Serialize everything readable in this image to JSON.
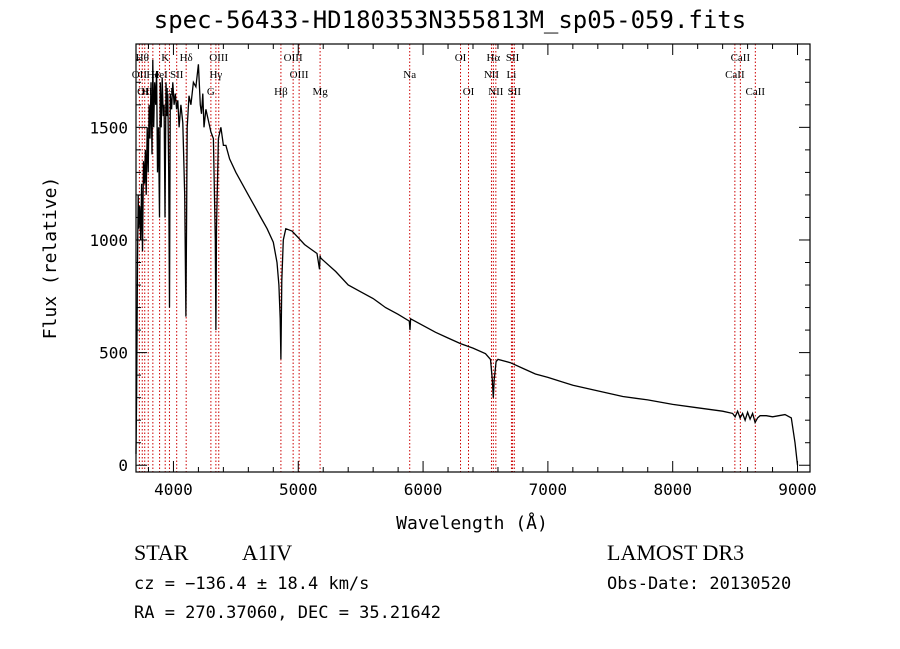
{
  "chart_data": {
    "type": "line",
    "title": "spec-56433-HD180353N355813M_sp05-059.fits",
    "xlabel": "Wavelength (Å)",
    "ylabel": "Flux (relative)",
    "xlim": [
      3700,
      9100
    ],
    "ylim": [
      -30,
      1870
    ],
    "x_ticks": [
      4000,
      5000,
      6000,
      7000,
      8000,
      9000
    ],
    "y_ticks": [
      0,
      500,
      1000,
      1500
    ],
    "x_minor_step": 200,
    "y_minor_step": 100,
    "line_color": "#000000",
    "marker_color": "#cc0000",
    "series": [
      {
        "name": "spectrum",
        "x": [
          3700,
          3705,
          3712,
          3718,
          3722,
          3730,
          3738,
          3745,
          3752,
          3760,
          3768,
          3775,
          3782,
          3790,
          3798,
          3805,
          3812,
          3820,
          3828,
          3835,
          3842,
          3850,
          3858,
          3865,
          3872,
          3880,
          3888,
          3895,
          3902,
          3910,
          3918,
          3925,
          3932,
          3940,
          3948,
          3955,
          3962,
          3968,
          3975,
          3985,
          3995,
          4005,
          4015,
          4025,
          4035,
          4045,
          4060,
          4075,
          4090,
          4100,
          4105,
          4110,
          4125,
          4140,
          4160,
          4180,
          4200,
          4215,
          4225,
          4235,
          4245,
          4260,
          4280,
          4300,
          4320,
          4335,
          4340,
          4345,
          4360,
          4380,
          4400,
          4420,
          4450,
          4500,
          4550,
          4600,
          4650,
          4700,
          4750,
          4800,
          4830,
          4845,
          4855,
          4861,
          4868,
          4880,
          4900,
          4950,
          5000,
          5050,
          5100,
          5150,
          5170,
          5175,
          5180,
          5200,
          5300,
          5400,
          5500,
          5600,
          5700,
          5800,
          5890,
          5895,
          5900,
          6000,
          6100,
          6200,
          6300,
          6400,
          6500,
          6540,
          6555,
          6563,
          6570,
          6585,
          6600,
          6700,
          6800,
          6900,
          7000,
          7200,
          7400,
          7600,
          7800,
          8000,
          8200,
          8400,
          8480,
          8500,
          8520,
          8540,
          8560,
          8580,
          8600,
          8620,
          8640,
          8660,
          8680,
          8700,
          8750,
          8800,
          8850,
          8900,
          8950,
          8980,
          9000
        ],
        "y": [
          50,
          300,
          900,
          1200,
          1050,
          1150,
          1000,
          1250,
          950,
          1350,
          1250,
          1400,
          1200,
          1500,
          1300,
          1600,
          1450,
          1700,
          1380,
          1800,
          1500,
          1700,
          1600,
          1750,
          1300,
          1500,
          1100,
          1700,
          1500,
          1720,
          1550,
          1600,
          1100,
          1700,
          1550,
          1650,
          1300,
          700,
          1650,
          1580,
          1700,
          1600,
          1650,
          1580,
          1620,
          1500,
          1600,
          1520,
          1200,
          660,
          1100,
          1500,
          1640,
          1600,
          1700,
          1680,
          1780,
          1600,
          1560,
          1650,
          1500,
          1580,
          1530,
          1480,
          1450,
          1000,
          600,
          1050,
          1450,
          1500,
          1420,
          1420,
          1360,
          1300,
          1250,
          1200,
          1150,
          1100,
          1050,
          990,
          900,
          800,
          650,
          470,
          820,
          1000,
          1050,
          1040,
          1010,
          980,
          960,
          940,
          870,
          930,
          920,
          910,
          860,
          800,
          770,
          740,
          700,
          670,
          640,
          600,
          650,
          620,
          590,
          565,
          540,
          520,
          495,
          470,
          380,
          300,
          380,
          460,
          470,
          455,
          430,
          405,
          390,
          355,
          330,
          305,
          290,
          270,
          255,
          240,
          230,
          215,
          240,
          210,
          230,
          200,
          235,
          205,
          230,
          190,
          210,
          220,
          220,
          215,
          220,
          225,
          210,
          100,
          0
        ]
      }
    ],
    "lines": [
      {
        "x": 3727,
        "label": "OII",
        "row": 2
      },
      {
        "x": 3750,
        "label": "Hθ",
        "row": 1
      },
      {
        "x": 3770,
        "label": "OII",
        "row": 3
      },
      {
        "x": 3798,
        "label": "Hη",
        "row": 3
      },
      {
        "x": 3835,
        "label": "He",
        "row": 2
      },
      {
        "x": 3889,
        "label": "HeI",
        "row": 2
      },
      {
        "x": 3934,
        "label": "K",
        "row": 1
      },
      {
        "x": 3968,
        "label": "H",
        "row": 3
      },
      {
        "x": 4026,
        "label": "SII",
        "row": 2
      },
      {
        "x": 4102,
        "label": "Hδ",
        "row": 1
      },
      {
        "x": 4300,
        "label": "G",
        "row": 3
      },
      {
        "x": 4340,
        "label": "Hγ",
        "row": 2
      },
      {
        "x": 4363,
        "label": "OIII",
        "row": 1
      },
      {
        "x": 4861,
        "label": "Hβ",
        "row": 3
      },
      {
        "x": 4959,
        "label": "OIII",
        "row": 1
      },
      {
        "x": 5007,
        "label": "OIII",
        "row": 2
      },
      {
        "x": 5175,
        "label": "Mg",
        "row": 3
      },
      {
        "x": 5893,
        "label": "Na",
        "row": 2
      },
      {
        "x": 6300,
        "label": "OI",
        "row": 1
      },
      {
        "x": 6364,
        "label": "OI",
        "row": 3
      },
      {
        "x": 6548,
        "label": "NII",
        "row": 2
      },
      {
        "x": 6563,
        "label": "Hα",
        "row": 1
      },
      {
        "x": 6583,
        "label": "NII",
        "row": 3
      },
      {
        "x": 6708,
        "label": "Li",
        "row": 2
      },
      {
        "x": 6717,
        "label": "SII",
        "row": 1
      },
      {
        "x": 6731,
        "label": "SII",
        "row": 3
      },
      {
        "x": 8498,
        "label": "CaII",
        "row": 2
      },
      {
        "x": 8542,
        "label": "CaII",
        "row": 1
      },
      {
        "x": 8662,
        "label": "CaII",
        "row": 3
      }
    ]
  },
  "info": {
    "object_type": "STAR",
    "subclass": "A1IV",
    "survey": "LAMOST DR3",
    "velocity": "cz = −136.4 ± 18.4 km/s",
    "obs_date": "Obs-Date: 20130520",
    "coords": "RA = 270.37060, DEC =  35.21642"
  }
}
